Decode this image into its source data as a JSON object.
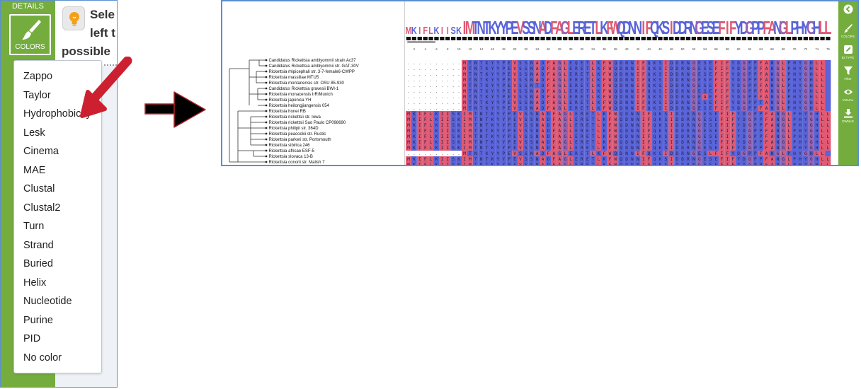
{
  "left_panel": {
    "details_label": "DETAILS",
    "colors_label": "COLORS",
    "hint_lines": [
      "Sele",
      "left t",
      "possible"
    ],
    "color_schemes": [
      "Zappo",
      "Taylor",
      "Hydrophobicity",
      "Lesk",
      "Cinema",
      "MAE",
      "Clustal",
      "Clustal2",
      "Turn",
      "Strand",
      "Buried",
      "Helix",
      "Nucleotide",
      "Purine",
      "PID",
      "No color"
    ]
  },
  "colors": {
    "panel_green": "#74ad3e",
    "frame_blue": "#5b8fd4",
    "arrow_red": "#cc2030",
    "hydrophobic_red": "#e05a74",
    "hydrophilic_blue": "#5a64d8"
  },
  "viewer": {
    "consensus_logo": "MKIFLKIISKIMTNTKYYPEVSSNADFAGLERETLKFWQDNNIFQKSIDDRNGESEFIFYDGPPFANGLPHYGHLL",
    "ruler_ticks": [
      "2",
      "4",
      "6",
      "8",
      "10",
      "12",
      "14",
      "16",
      "18",
      "20",
      "22",
      "24",
      "26",
      "28",
      "30",
      "32",
      "34",
      "36",
      "38",
      "40",
      "42",
      "44",
      "46",
      "48",
      "50",
      "52",
      "54",
      "56",
      "58",
      "60",
      "62",
      "64",
      "66",
      "68",
      "70",
      "72",
      "74",
      "76"
    ],
    "sequences": [
      {
        "name": "Candidatus Rickettsia amblyommii strain Ac37",
        "seq": "----------MTNTKYYPEVSSNADFAGLEQETLKFWQDNNIFQKSIDDRNGESEFIFYDGPPFANGLPHYGHLL"
      },
      {
        "name": "Candidatus Rickettsia amblyommii str. GAT-30V",
        "seq": "----------MTNTKYYPEVSSNADFAGLERETLKFWQDNNIFQKSIDDRNGESEFIFYDGPPFANGLPHYGHLL"
      },
      {
        "name": "Rickettsia rhipicephali str. 3-7-female6-CWPP",
        "seq": "----------MTNTKYYPEVSSNADFAGLERETLKFWQDNNIFQKSIDDRNGESEFIFYDGPPFANGLPHYGHLL"
      },
      {
        "name": "Rickettsia massiliae MTU5",
        "seq": "----------MTNTKYYPEVSSNADFAGLERETLKFWQDNNIFQKSIDDRNGESEFIFYDGPPFANGLPHYGHLL"
      },
      {
        "name": "Rickettsia montanensis str. OSU 85-930",
        "seq": "----------MTNTKYYPEVSSNTDFAGLERETLKFWQDNNIFQKSIDDRNGESEFIFYDGPPFANGLPHYGHLL"
      },
      {
        "name": "Candidatus Rickettsia gravesii BWI-1",
        "seq": "----------MTNTKYYPEVSSNADFAGLERETLKFWQDNNIFQKSIDDRNGESEFIFYDGPPFANGLPHYGHLL"
      },
      {
        "name": "Rickettsia monacensis IrR/Munich",
        "seq": "----------MTNTKYYPEVSSNADFAGLERETLKFWQDNNIFQKSIDDRNGEAEFIFYDGPPFANGLPHYGHLL"
      },
      {
        "name": "Rickettsia japonica YH",
        "seq": "----------MTNTKYYPEVSSNADFAGLERETLKFWQDNNIFQKSIDDRNGESEFIFYDGPPTANGLPHYGHLL"
      },
      {
        "name": "Rickettsia heilongjiangensis 054",
        "seq": "----------MTNTKYYPEVSSNADFAGLERETLKFWQDNNIFQKSIDDRNGESEFIFYDGPPFANGLPHYGHLL"
      },
      {
        "name": "Rickettsia honei RB",
        "seq": "MKIFLKIISKIMTNTKYYPEVSSNADFAGLERETLKFWQDNNIFQKSIDDRNGESEFIFYDGPPFANGLPHYGHLL"
      },
      {
        "name": "Rickettsia rickettsii str. Iowa",
        "seq": "MKIFLKIISKIMTNTKYYPEVSSNADFAGLERETLKFWQDNNIFQKSIDDRNGESEFIFYDGPPFANGLPHYGHLL"
      },
      {
        "name": "Rickettsia rickettsii Sao Paulo CP098690",
        "seq": "MKIFLKIISKIMTNTKYYPEVSSNADFAGLERETLKFWQDNNIFQKSIDDRNGESEFIFYDGPPFANGLPHYGHLL"
      },
      {
        "name": "Rickettsia philipii str. 364D",
        "seq": "MKIFLKIISKIMTNTKYYPEVSSNADFAGLERETLKFWQDNNIFQKSIDDRNGESEFIFYDGPPFANGLPHYGHLL"
      },
      {
        "name": "Rickettsia peacockii str. Rustic",
        "seq": "MKIFLKIISKIMTNTKYYPEVSSNADFAGLERETLKFWQDNNIFQKSIDDRNGESEFIFYDGPPFANGLPHYGHLL"
      },
      {
        "name": "Rickettsia parkeri str. Portsmouth",
        "seq": "MKIFLKIISKIMTNTKYYPEVSSNADFAGLERETLKFWQDNNIFQKSIDDRNGESEFIFYDGPPFANGLPHYGHLL"
      },
      {
        "name": "Rickettsia sibirica 246",
        "seq": "MKIFLKIISKIMTNTKYYPEVSSNADFAGLERETLKFWQDNNIFQKSIDDRNGESEFIFYDGPPFANGLPHYGHLL"
      },
      {
        "name": "Rickettsia africae ESF-5",
        "seq": "----------MTNTKYYPEVSSNADFAGLERETLKFWQDNNIFQKSIDDRNGESLFIFYDGPPFANGLPHYGHLL"
      },
      {
        "name": "Rickettsia slovaca 13-B",
        "seq": "MKIFLKIISKIMTNTKYYPEVSSNADFAGLERETLKFWQDNNIFQKSIDDRNGESEFIFYDGPPFANGLPHYGHLL"
      },
      {
        "name": "Rickettsia conorii str. Malish 7",
        "seq": "MKIFLKIISKIMTNTKYYPEVSSNADFAGLERETLKFWQDNNIFQKSIDDRNGESEFIFYDGPPFANGLPHYGHLL"
      }
    ],
    "toolbar": [
      {
        "icon": "chevron-left-icon",
        "label": ""
      },
      {
        "icon": "brush-icon",
        "label": "COLORS"
      },
      {
        "icon": "id-type-icon",
        "label": "ID TYPE"
      },
      {
        "icon": "filter-icon",
        "label": "Filter"
      },
      {
        "icon": "eye-icon",
        "label": "VISUAL"
      },
      {
        "icon": "download-icon",
        "label": "DWNLD"
      }
    ]
  }
}
